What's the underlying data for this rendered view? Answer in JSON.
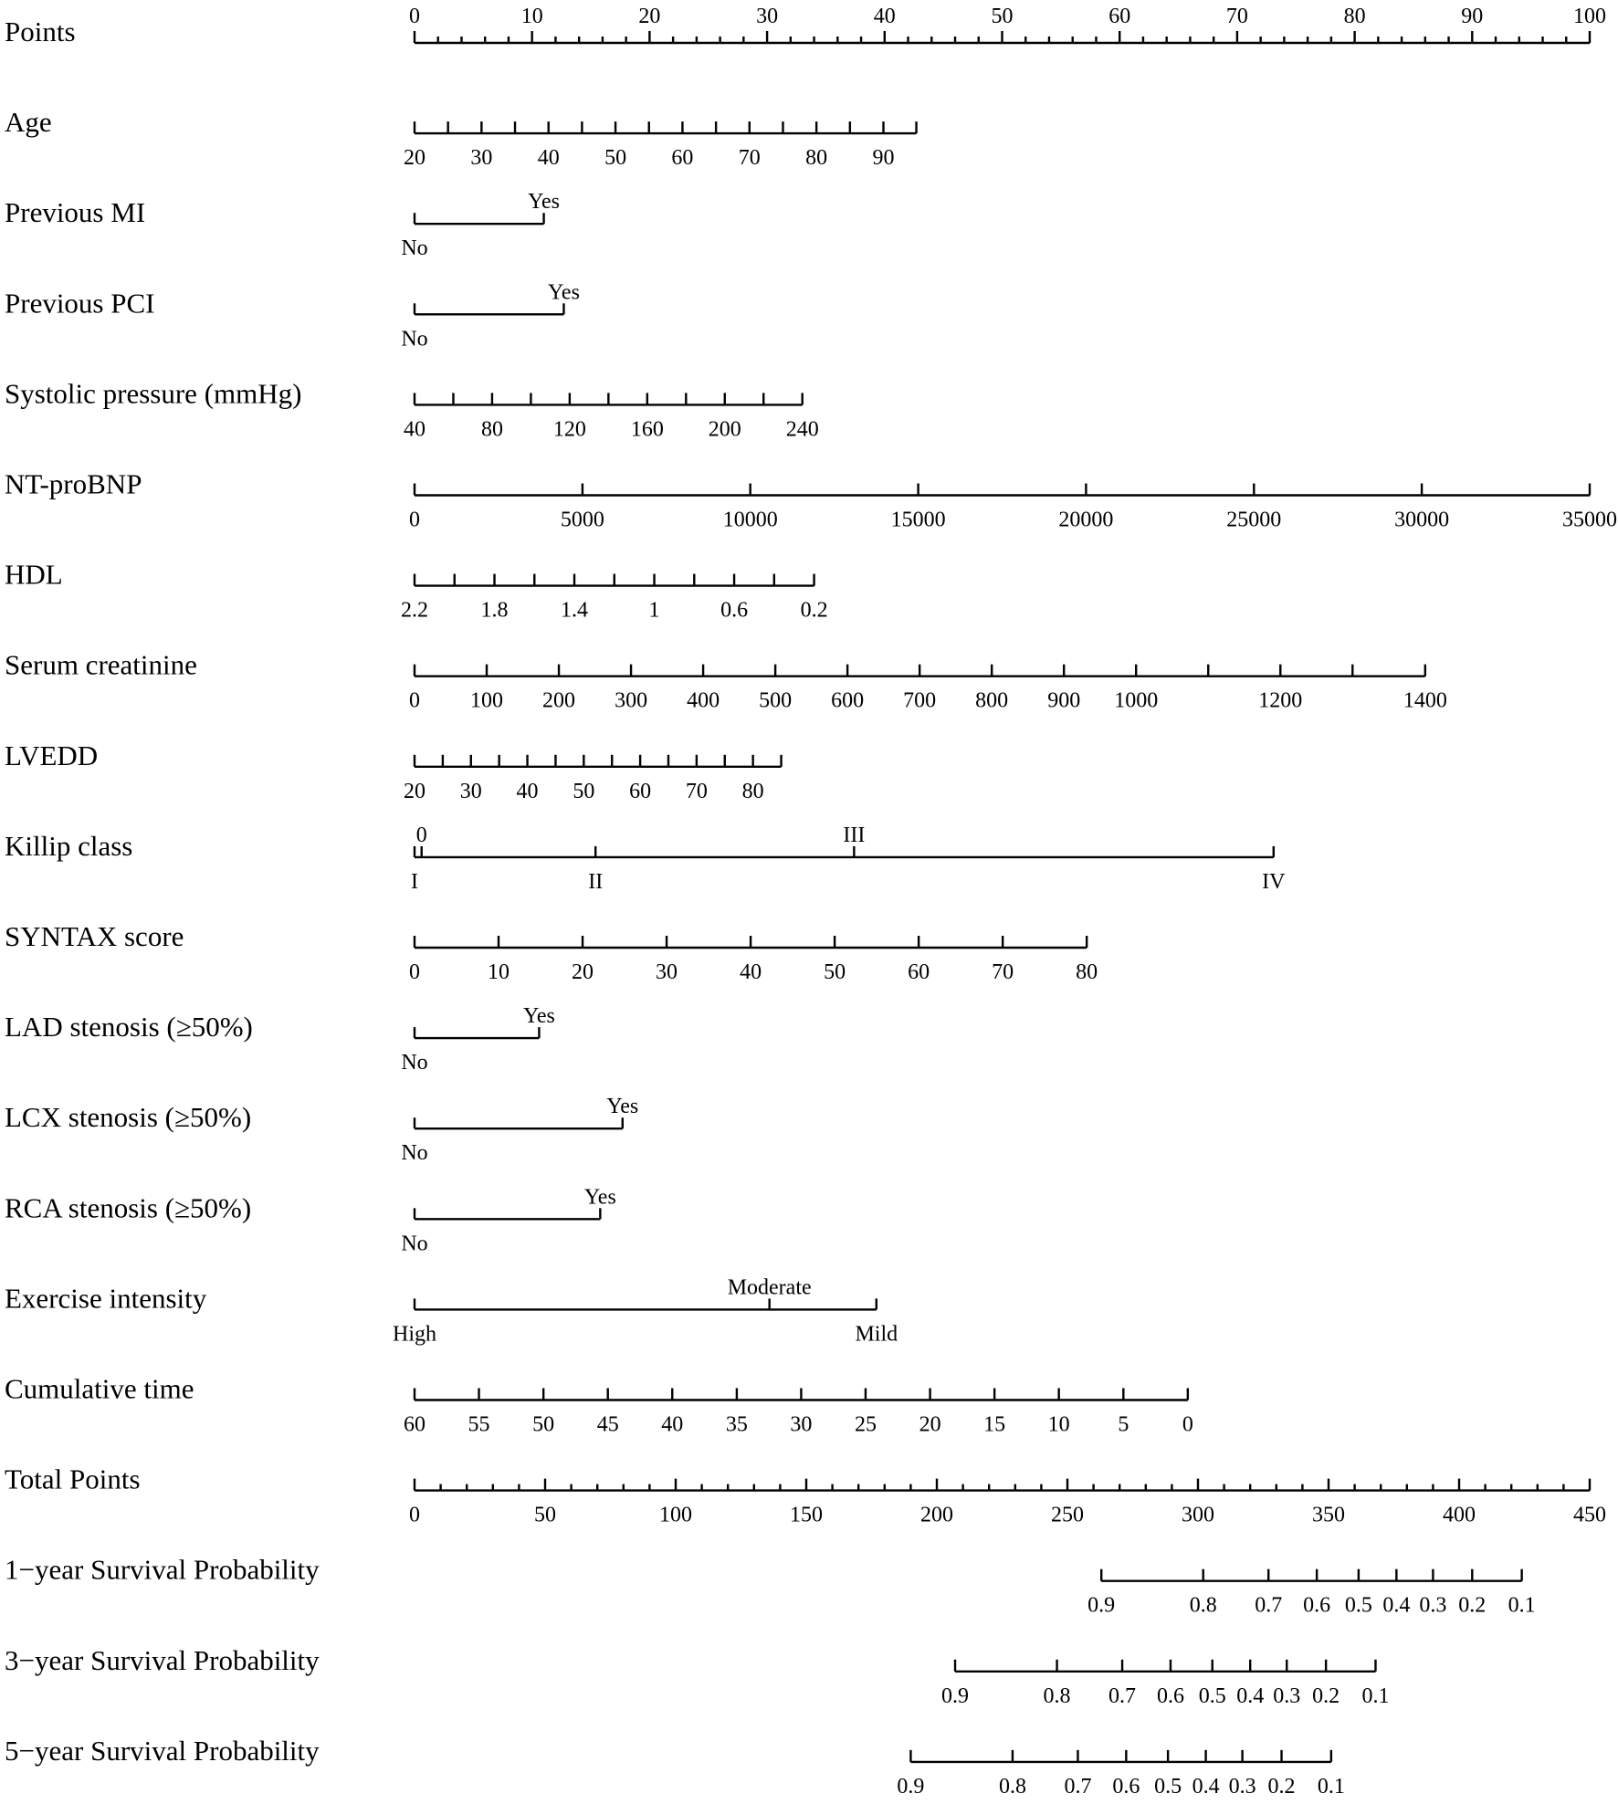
{
  "chart_data": {
    "type": "nomogram",
    "title": "",
    "rows": [
      {
        "label": "Points",
        "ticks": [
          {
            "v": 0,
            "l": "0"
          },
          {
            "v": 10,
            "l": "10"
          },
          {
            "v": 20,
            "l": "20"
          },
          {
            "v": 30,
            "l": "30"
          },
          {
            "v": 40,
            "l": "40"
          },
          {
            "v": 50,
            "l": "50"
          },
          {
            "v": 60,
            "l": "60"
          },
          {
            "v": 70,
            "l": "70"
          },
          {
            "v": 80,
            "l": "80"
          },
          {
            "v": 90,
            "l": "90"
          },
          {
            "v": 100,
            "l": "100"
          }
        ]
      },
      {
        "label": "Age",
        "ticks": [
          {
            "v": 0,
            "l": "20"
          },
          {
            "v": 2.85,
            "l": ""
          },
          {
            "v": 5.7,
            "l": "30"
          },
          {
            "v": 8.55,
            "l": ""
          },
          {
            "v": 11.4,
            "l": "40"
          },
          {
            "v": 14.25,
            "l": ""
          },
          {
            "v": 17.1,
            "l": "50"
          },
          {
            "v": 19.95,
            "l": ""
          },
          {
            "v": 22.8,
            "l": "60"
          },
          {
            "v": 25.65,
            "l": ""
          },
          {
            "v": 28.5,
            "l": "70"
          },
          {
            "v": 31.35,
            "l": ""
          },
          {
            "v": 34.2,
            "l": "80"
          },
          {
            "v": 37.05,
            "l": ""
          },
          {
            "v": 39.9,
            "l": "90"
          },
          {
            "v": 42.7,
            "l": ""
          }
        ]
      },
      {
        "label": "Previous MI",
        "ticks": [
          {
            "v": 0,
            "l": "No",
            "pos": "below"
          },
          {
            "v": 11,
            "l": "Yes",
            "pos": "above"
          }
        ]
      },
      {
        "label": "Previous PCI",
        "ticks": [
          {
            "v": 0,
            "l": "No",
            "pos": "below"
          },
          {
            "v": 12.7,
            "l": "Yes",
            "pos": "above"
          }
        ]
      },
      {
        "label": "Systolic pressure (mmHg)",
        "ticks": [
          {
            "v": 0,
            "l": "40"
          },
          {
            "v": 3.3,
            "l": ""
          },
          {
            "v": 6.6,
            "l": "80"
          },
          {
            "v": 9.9,
            "l": ""
          },
          {
            "v": 13.2,
            "l": "120"
          },
          {
            "v": 16.5,
            "l": ""
          },
          {
            "v": 19.8,
            "l": "160"
          },
          {
            "v": 23.1,
            "l": ""
          },
          {
            "v": 26.4,
            "l": "200"
          },
          {
            "v": 29.7,
            "l": ""
          },
          {
            "v": 33.0,
            "l": "240"
          }
        ]
      },
      {
        "label": "NT-proBNP",
        "ticks": [
          {
            "v": 0,
            "l": "0"
          },
          {
            "v": 14.29,
            "l": "5000"
          },
          {
            "v": 28.57,
            "l": "10000"
          },
          {
            "v": 42.86,
            "l": "15000"
          },
          {
            "v": 57.14,
            "l": "20000"
          },
          {
            "v": 71.43,
            "l": "25000"
          },
          {
            "v": 85.71,
            "l": "30000"
          },
          {
            "v": 100,
            "l": "35000"
          }
        ]
      },
      {
        "label": "HDL",
        "ticks": [
          {
            "v": 0,
            "l": "2.2"
          },
          {
            "v": 3.4,
            "l": ""
          },
          {
            "v": 6.8,
            "l": "1.8"
          },
          {
            "v": 10.2,
            "l": ""
          },
          {
            "v": 13.6,
            "l": "1.4"
          },
          {
            "v": 17.0,
            "l": ""
          },
          {
            "v": 20.4,
            "l": "1"
          },
          {
            "v": 23.8,
            "l": ""
          },
          {
            "v": 27.2,
            "l": "0.6"
          },
          {
            "v": 30.6,
            "l": ""
          },
          {
            "v": 34.0,
            "l": "0.2"
          }
        ]
      },
      {
        "label": "Serum creatinine",
        "ticks": [
          {
            "v": 0,
            "l": "0"
          },
          {
            "v": 6.14,
            "l": "100"
          },
          {
            "v": 12.28,
            "l": "200"
          },
          {
            "v": 18.42,
            "l": "300"
          },
          {
            "v": 24.56,
            "l": "400"
          },
          {
            "v": 30.7,
            "l": "500"
          },
          {
            "v": 36.84,
            "l": "600"
          },
          {
            "v": 42.98,
            "l": "700"
          },
          {
            "v": 49.12,
            "l": "800"
          },
          {
            "v": 55.26,
            "l": "900"
          },
          {
            "v": 61.4,
            "l": "1000"
          },
          {
            "v": 67.54,
            "l": ""
          },
          {
            "v": 73.68,
            "l": "1200"
          },
          {
            "v": 79.82,
            "l": ""
          },
          {
            "v": 86.0,
            "l": "1400"
          }
        ]
      },
      {
        "label": "LVEDD",
        "ticks": [
          {
            "v": 0,
            "l": "20"
          },
          {
            "v": 2.4,
            "l": ""
          },
          {
            "v": 4.8,
            "l": "30"
          },
          {
            "v": 7.2,
            "l": ""
          },
          {
            "v": 9.6,
            "l": "40"
          },
          {
            "v": 12.0,
            "l": ""
          },
          {
            "v": 14.4,
            "l": "50"
          },
          {
            "v": 16.8,
            "l": ""
          },
          {
            "v": 19.2,
            "l": "60"
          },
          {
            "v": 21.6,
            "l": ""
          },
          {
            "v": 24.0,
            "l": "70"
          },
          {
            "v": 26.4,
            "l": ""
          },
          {
            "v": 28.8,
            "l": "80"
          },
          {
            "v": 31.2,
            "l": ""
          }
        ]
      },
      {
        "label": "Killip class",
        "ticks": [
          {
            "v": 0,
            "l": "I",
            "pos": "below"
          },
          {
            "v": 0.6,
            "l": "0",
            "pos": "above"
          },
          {
            "v": 15.4,
            "l": "II",
            "pos": "below"
          },
          {
            "v": 37.4,
            "l": "III",
            "pos": "above"
          },
          {
            "v": 73.1,
            "l": "IV",
            "pos": "below"
          }
        ]
      },
      {
        "label": "SYNTAX score",
        "ticks": [
          {
            "v": 0,
            "l": "0"
          },
          {
            "v": 7.15,
            "l": "10"
          },
          {
            "v": 14.3,
            "l": "20"
          },
          {
            "v": 21.45,
            "l": "30"
          },
          {
            "v": 28.6,
            "l": "40"
          },
          {
            "v": 35.75,
            "l": "50"
          },
          {
            "v": 42.9,
            "l": "60"
          },
          {
            "v": 50.05,
            "l": "70"
          },
          {
            "v": 57.2,
            "l": "80"
          }
        ]
      },
      {
        "label": "LAD stenosis (≥50%)",
        "ticks": [
          {
            "v": 0,
            "l": "No",
            "pos": "below"
          },
          {
            "v": 10.6,
            "l": "Yes",
            "pos": "above"
          }
        ]
      },
      {
        "label": "LCX stenosis (≥50%)",
        "ticks": [
          {
            "v": 0,
            "l": "No",
            "pos": "below"
          },
          {
            "v": 17.7,
            "l": "Yes",
            "pos": "above"
          }
        ]
      },
      {
        "label": "RCA stenosis (≥50%)",
        "ticks": [
          {
            "v": 0,
            "l": "No",
            "pos": "below"
          },
          {
            "v": 15.8,
            "l": "Yes",
            "pos": "above"
          }
        ]
      },
      {
        "label": "Exercise intensity",
        "ticks": [
          {
            "v": 0,
            "l": "High",
            "pos": "below"
          },
          {
            "v": 30.2,
            "l": "Moderate",
            "pos": "above"
          },
          {
            "v": 39.3,
            "l": "Mild",
            "pos": "below"
          }
        ]
      },
      {
        "label": "Cumulative time",
        "ticks": [
          {
            "v": 0,
            "l": "60"
          },
          {
            "v": 5.48,
            "l": "55"
          },
          {
            "v": 10.97,
            "l": "50"
          },
          {
            "v": 16.45,
            "l": "45"
          },
          {
            "v": 21.93,
            "l": "40"
          },
          {
            "v": 27.42,
            "l": "35"
          },
          {
            "v": 32.9,
            "l": "30"
          },
          {
            "v": 38.38,
            "l": "25"
          },
          {
            "v": 43.87,
            "l": "20"
          },
          {
            "v": 49.35,
            "l": "15"
          },
          {
            "v": 54.83,
            "l": "10"
          },
          {
            "v": 60.32,
            "l": "5"
          },
          {
            "v": 65.8,
            "l": "0"
          }
        ]
      },
      {
        "label": "Total Points",
        "total": true,
        "ticks": [
          {
            "v": 0,
            "l": "0"
          },
          {
            "v": 50,
            "l": "50"
          },
          {
            "v": 100,
            "l": "100"
          },
          {
            "v": 150,
            "l": "150"
          },
          {
            "v": 200,
            "l": "200"
          },
          {
            "v": 250,
            "l": "250"
          },
          {
            "v": 300,
            "l": "300"
          },
          {
            "v": 350,
            "l": "350"
          },
          {
            "v": 400,
            "l": "400"
          },
          {
            "v": 450,
            "l": "450"
          }
        ]
      },
      {
        "label": "1−year Survival Probability",
        "total": true,
        "ticks": [
          {
            "v": 263,
            "l": "0.9"
          },
          {
            "v": 302,
            "l": "0.8"
          },
          {
            "v": 327,
            "l": "0.7"
          },
          {
            "v": 345.5,
            "l": "0.6"
          },
          {
            "v": 361.5,
            "l": "0.5"
          },
          {
            "v": 376,
            "l": "0.4"
          },
          {
            "v": 390,
            "l": "0.3"
          },
          {
            "v": 405,
            "l": "0.2"
          },
          {
            "v": 424,
            "l": "0.1"
          }
        ]
      },
      {
        "label": "3−year Survival Probability",
        "total": true,
        "ticks": [
          {
            "v": 207,
            "l": "0.9"
          },
          {
            "v": 246,
            "l": "0.8"
          },
          {
            "v": 271,
            "l": "0.7"
          },
          {
            "v": 289.5,
            "l": "0.6"
          },
          {
            "v": 305.5,
            "l": "0.5"
          },
          {
            "v": 320,
            "l": "0.4"
          },
          {
            "v": 334,
            "l": "0.3"
          },
          {
            "v": 349,
            "l": "0.2"
          },
          {
            "v": 368,
            "l": "0.1"
          }
        ]
      },
      {
        "label": "5−year Survival Probability",
        "total": true,
        "ticks": [
          {
            "v": 190,
            "l": "0.9"
          },
          {
            "v": 229,
            "l": "0.8"
          },
          {
            "v": 254,
            "l": "0.7"
          },
          {
            "v": 272.5,
            "l": "0.6"
          },
          {
            "v": 288.5,
            "l": "0.5"
          },
          {
            "v": 303,
            "l": "0.4"
          },
          {
            "v": 317,
            "l": "0.3"
          },
          {
            "v": 332,
            "l": "0.2"
          },
          {
            "v": 351,
            "l": "0.1"
          }
        ]
      }
    ],
    "points_range": [
      0,
      100
    ],
    "total_points_range": [
      0,
      450
    ]
  }
}
